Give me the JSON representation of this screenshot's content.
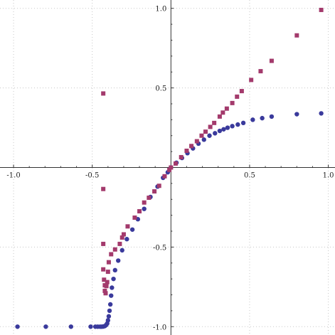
{
  "chart_data": {
    "type": "scatter",
    "title": "",
    "xlabel": "",
    "ylabel": "",
    "xlim": [
      -1.05,
      1.02
    ],
    "ylim": [
      -1.03,
      1.03
    ],
    "grid": true,
    "axes_through_origin": true,
    "x_ticks": [
      {
        "value": -1.0,
        "label": "-1.0"
      },
      {
        "value": -0.5,
        "label": "-0.5"
      },
      {
        "value": 0.5,
        "label": "0.5"
      },
      {
        "value": 1.0,
        "label": "1.0"
      }
    ],
    "y_ticks": [
      {
        "value": 1.0,
        "label": "1.0"
      },
      {
        "value": 0.5,
        "label": "0.5"
      },
      {
        "value": -0.5,
        "label": "-0.5"
      },
      {
        "value": -1.0,
        "label": "-1.0"
      }
    ],
    "series": [
      {
        "marker": "circle",
        "color": "#3a3a9c",
        "points": [
          [
            -0.975,
            -1.0
          ],
          [
            -0.795,
            -1.0
          ],
          [
            -0.635,
            -1.0
          ],
          [
            -0.51,
            -1.0
          ],
          [
            -0.48,
            -1.0
          ],
          [
            -0.465,
            -1.0
          ],
          [
            -0.45,
            -1.0
          ],
          [
            -0.44,
            -1.0
          ],
          [
            -0.43,
            -0.999
          ],
          [
            -0.42,
            -0.996
          ],
          [
            -0.412,
            -0.99
          ],
          [
            -0.405,
            -0.98
          ],
          [
            -0.4,
            -0.96
          ],
          [
            -0.395,
            -0.935
          ],
          [
            -0.39,
            -0.9
          ],
          [
            -0.385,
            -0.86
          ],
          [
            -0.38,
            -0.805
          ],
          [
            -0.375,
            -0.755
          ],
          [
            -0.365,
            -0.7
          ],
          [
            -0.355,
            -0.645
          ],
          [
            -0.335,
            -0.585
          ],
          [
            -0.31,
            -0.52
          ],
          [
            -0.28,
            -0.45
          ],
          [
            -0.245,
            -0.39
          ],
          [
            -0.21,
            -0.325
          ],
          [
            -0.17,
            -0.26
          ],
          [
            -0.13,
            -0.185
          ],
          [
            -0.085,
            -0.12
          ],
          [
            -0.05,
            -0.065
          ],
          [
            -0.02,
            -0.03
          ],
          [
            0.0,
            0.0
          ],
          [
            0.035,
            0.03
          ],
          [
            0.07,
            0.06
          ],
          [
            0.105,
            0.09
          ],
          [
            0.14,
            0.12
          ],
          [
            0.175,
            0.15
          ],
          [
            0.21,
            0.175
          ],
          [
            0.245,
            0.2
          ],
          [
            0.28,
            0.215
          ],
          [
            0.31,
            0.23
          ],
          [
            0.335,
            0.24
          ],
          [
            0.36,
            0.25
          ],
          [
            0.39,
            0.26
          ],
          [
            0.425,
            0.27
          ],
          [
            0.46,
            0.28
          ],
          [
            0.52,
            0.3
          ],
          [
            0.58,
            0.31
          ],
          [
            0.64,
            0.32
          ],
          [
            0.8,
            0.335
          ],
          [
            0.955,
            0.34
          ]
        ]
      },
      {
        "marker": "square",
        "color": "#a33a6c",
        "points": [
          [
            -0.43,
            0.465
          ],
          [
            -0.43,
            -0.135
          ],
          [
            -0.43,
            -0.48
          ],
          [
            -0.43,
            -0.64
          ],
          [
            -0.425,
            -0.705
          ],
          [
            -0.42,
            -0.74
          ],
          [
            -0.42,
            -0.775
          ],
          [
            -0.415,
            -0.79
          ],
          [
            -0.41,
            -0.745
          ],
          [
            -0.405,
            -0.72
          ],
          [
            -0.4,
            -0.655
          ],
          [
            -0.395,
            -0.595
          ],
          [
            -0.38,
            -0.545
          ],
          [
            -0.355,
            -0.515
          ],
          [
            -0.325,
            -0.48
          ],
          [
            -0.31,
            -0.44
          ],
          [
            -0.3,
            -0.42
          ],
          [
            -0.275,
            -0.37
          ],
          [
            -0.23,
            -0.315
          ],
          [
            -0.2,
            -0.275
          ],
          [
            -0.17,
            -0.22
          ],
          [
            -0.14,
            -0.19
          ],
          [
            -0.105,
            -0.15
          ],
          [
            -0.075,
            -0.115
          ],
          [
            -0.04,
            -0.055
          ],
          [
            -0.01,
            -0.015
          ],
          [
            0.0,
            0.0
          ],
          [
            0.03,
            0.025
          ],
          [
            0.065,
            0.065
          ],
          [
            0.1,
            0.105
          ],
          [
            0.13,
            0.135
          ],
          [
            0.165,
            0.165
          ],
          [
            0.195,
            0.2
          ],
          [
            0.22,
            0.225
          ],
          [
            0.25,
            0.255
          ],
          [
            0.275,
            0.28
          ],
          [
            0.31,
            0.32
          ],
          [
            0.33,
            0.345
          ],
          [
            0.355,
            0.37
          ],
          [
            0.39,
            0.405
          ],
          [
            0.42,
            0.445
          ],
          [
            0.45,
            0.48
          ],
          [
            0.51,
            0.55
          ],
          [
            0.57,
            0.605
          ],
          [
            0.64,
            0.67
          ],
          [
            0.8,
            0.83
          ],
          [
            0.955,
            0.99
          ]
        ]
      }
    ]
  }
}
